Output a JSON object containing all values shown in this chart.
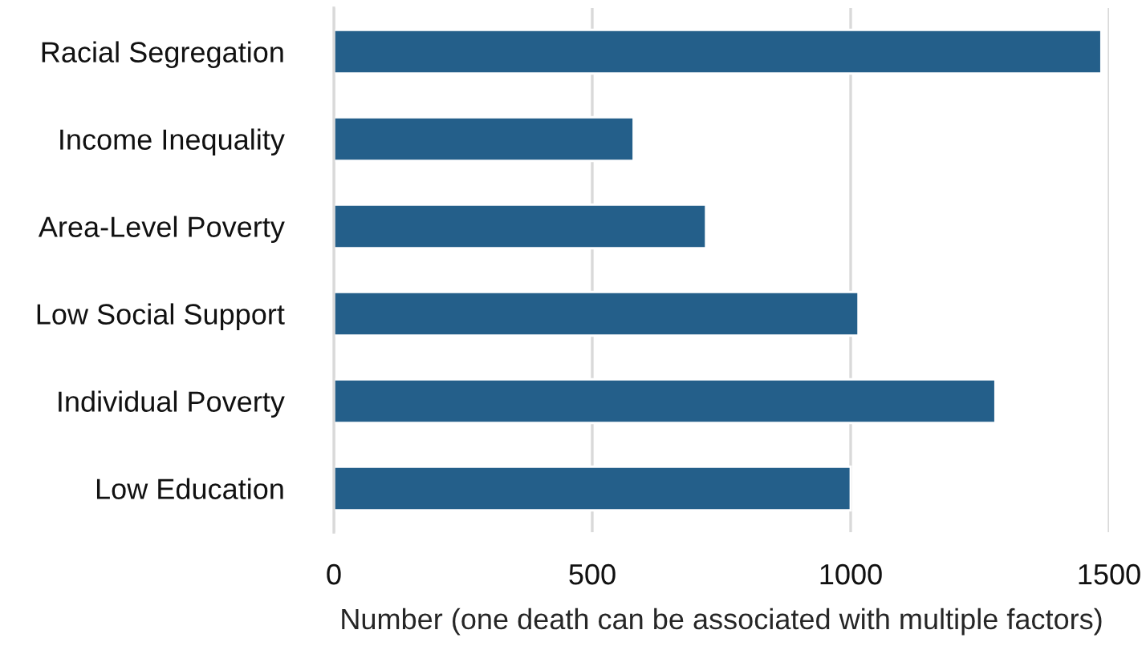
{
  "chart_data": {
    "type": "bar",
    "orientation": "horizontal",
    "categories": [
      "Racial Segregation",
      "Income Inequality",
      "Area-Level Poverty",
      "Low Social Support",
      "Individual Poverty",
      "Low Education"
    ],
    "values": [
      1485,
      580,
      720,
      1015,
      1280,
      1000
    ],
    "color": "#245f8a",
    "xlabel": "Number (one death can be associated with multiple factors)",
    "xlim": [
      0,
      1500
    ],
    "xticks": [
      0,
      500,
      1000,
      1500
    ],
    "grid": "x",
    "legend": false
  }
}
